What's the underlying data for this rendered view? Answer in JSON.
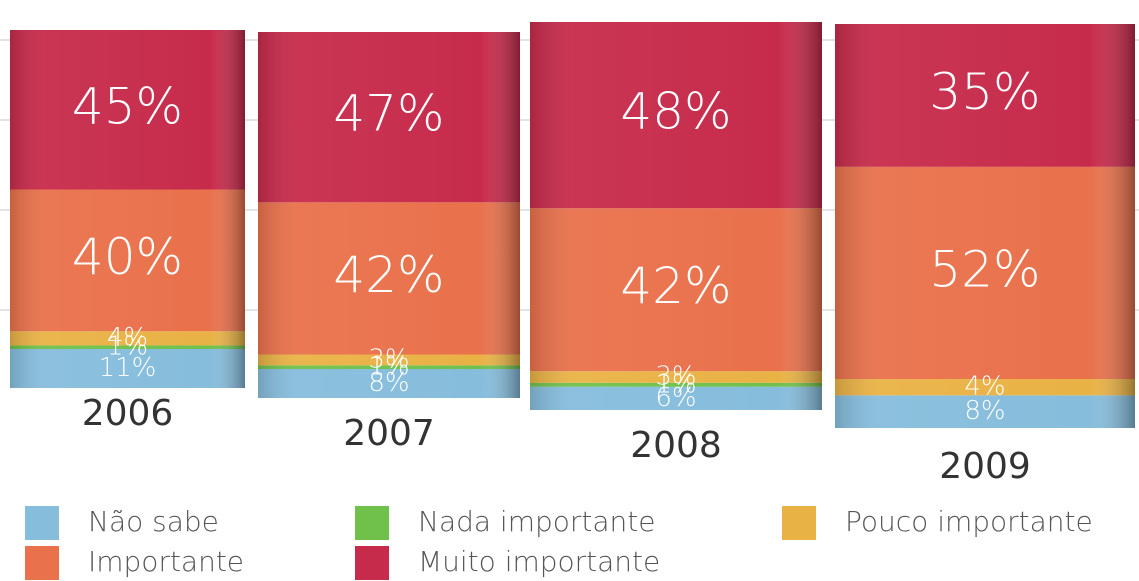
{
  "chart_data": {
    "type": "stacked_bar",
    "categories": [
      "2006",
      "2007",
      "2008",
      "2009"
    ],
    "series": [
      {
        "name": "Não sabe",
        "color": "#86bddc",
        "values": [
          11,
          8,
          6,
          8
        ],
        "value_labels": [
          "11%",
          "8%",
          "6%",
          "8%"
        ]
      },
      {
        "name": "Nada importante",
        "color": "#6fc14c",
        "values": [
          1,
          1,
          1,
          null
        ],
        "value_labels": [
          "1%",
          "1%",
          "1%",
          null
        ]
      },
      {
        "name": "Pouco importante",
        "color": "#e9b245",
        "values": [
          4,
          3,
          3,
          4
        ],
        "value_labels": [
          "4%",
          "3%",
          "3%",
          "4%"
        ]
      },
      {
        "name": "Importante",
        "color": "#e9714b",
        "values": [
          40,
          42,
          42,
          52
        ],
        "value_labels": [
          "40%",
          "42%",
          "42%",
          "52%"
        ]
      },
      {
        "name": "Muito importante",
        "color": "#c72b4b",
        "values": [
          45,
          47,
          48,
          35
        ],
        "value_labels": [
          "45%",
          "47%",
          "48%",
          "35%"
        ]
      }
    ]
  }
}
